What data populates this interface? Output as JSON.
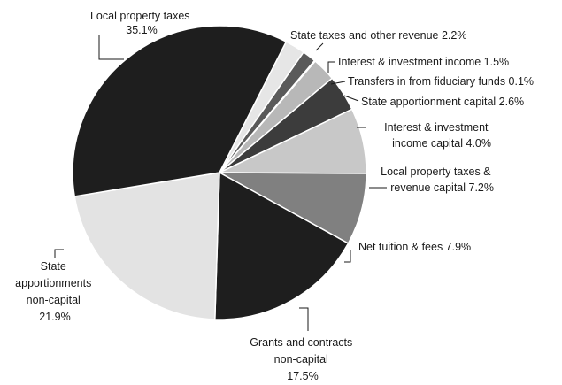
{
  "chart_data": {
    "type": "pie",
    "title": "",
    "slices": [
      {
        "label_lines": [
          "State taxes and other revenue 2.2%"
        ],
        "value": 2.2,
        "color": "#e6e6e6"
      },
      {
        "label_lines": [
          "Interest & investment income 1.5%"
        ],
        "value": 1.5,
        "color": "#5a5a5a"
      },
      {
        "label_lines": [
          "Transfers in from fiduciary funds 0.1%"
        ],
        "value": 0.1,
        "color": "#9a9a9a"
      },
      {
        "label_lines": [
          "State apportionment capital 2.6%"
        ],
        "value": 2.6,
        "color": "#b8b8b8"
      },
      {
        "label_lines": [
          "Interest & investment",
          "income capital 4.0%"
        ],
        "value": 4.0,
        "color": "#3c3c3c"
      },
      {
        "label_lines": [
          "Local property taxes &",
          "revenue capital 7.2%"
        ],
        "value": 7.2,
        "color": "#c8c8c8"
      },
      {
        "label_lines": [
          "Net tuition & fees 7.9%"
        ],
        "value": 7.9,
        "color": "#808080"
      },
      {
        "label_lines": [
          "Grants and contracts",
          "non-capital",
          "17.5%"
        ],
        "value": 17.5,
        "color": "#1e1e1e"
      },
      {
        "label_lines": [
          "State",
          "apportionments",
          "non-capital",
          "21.9%"
        ],
        "value": 21.9,
        "color": "#e3e3e3"
      },
      {
        "label_lines": [
          "Local property taxes",
          "35.1%"
        ],
        "value": 35.1,
        "color": "#1e1e1e"
      }
    ]
  }
}
